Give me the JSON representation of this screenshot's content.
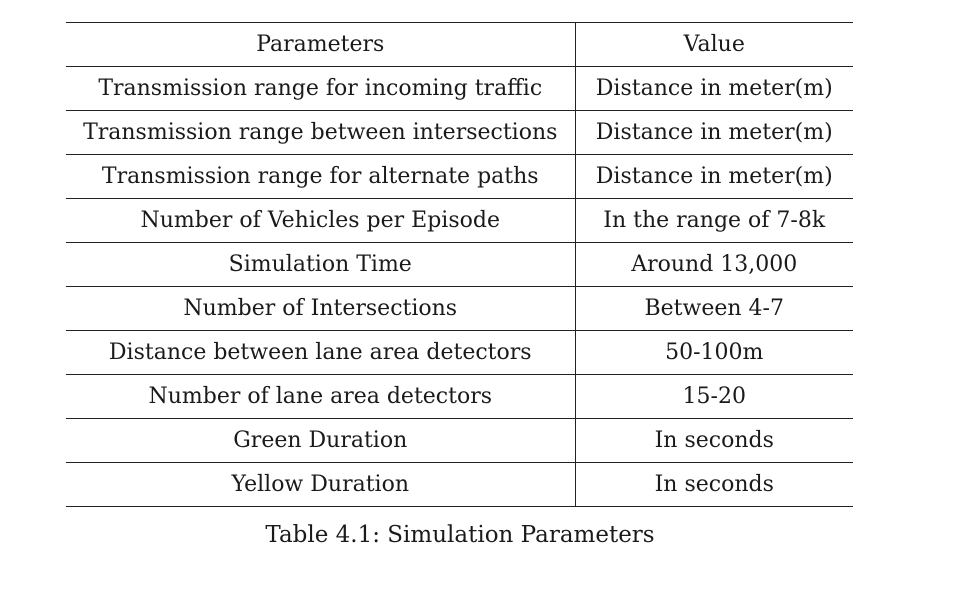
{
  "table": {
    "headers": [
      "Parameters",
      "Value"
    ],
    "rows": [
      [
        "Transmission range for incoming traffic",
        "Distance in meter(m)"
      ],
      [
        "Transmission range between intersections",
        "Distance in meter(m)"
      ],
      [
        "Transmission range for alternate paths",
        "Distance in meter(m)"
      ],
      [
        "Number of Vehicles per Episode",
        "In the range of 7-8k"
      ],
      [
        "Simulation Time",
        "Around 13,000"
      ],
      [
        "Number of Intersections",
        "Between 4-7"
      ],
      [
        "Distance between lane area detectors",
        "50-100m"
      ],
      [
        "Number of lane area detectors",
        "15-20"
      ],
      [
        "Green Duration",
        "In seconds"
      ],
      [
        "Yellow Duration",
        "In seconds"
      ]
    ]
  },
  "caption": "Table 4.1: Simulation Parameters"
}
